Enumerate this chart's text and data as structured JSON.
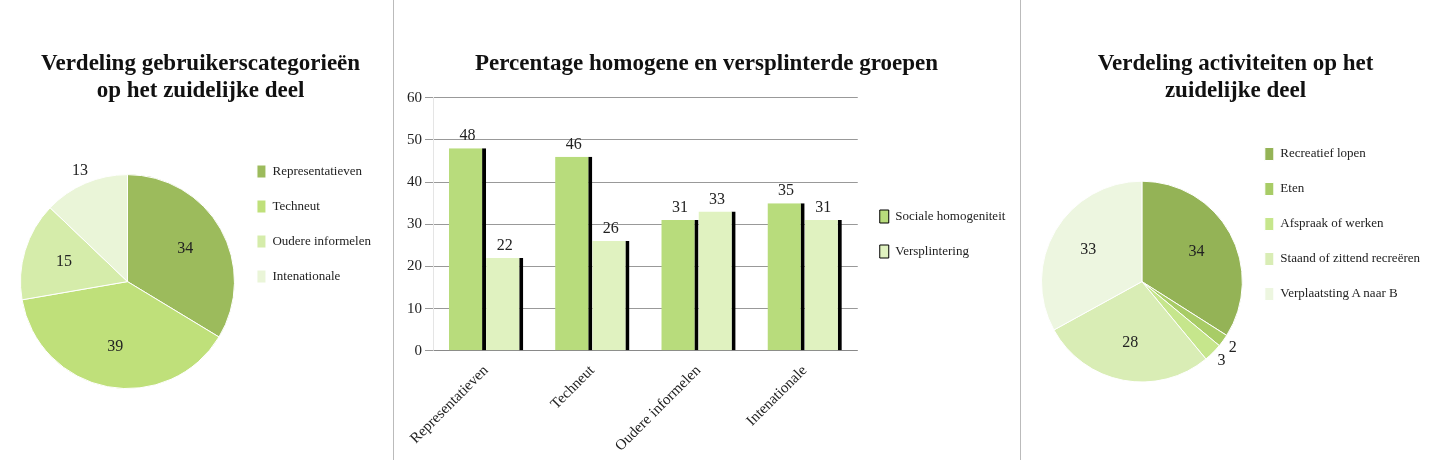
{
  "chart_data": [
    {
      "type": "pie",
      "title": "Verdeling gebruikerscategorieën op het zuidelijke deel",
      "categories": [
        "Representatieven",
        "Techneut",
        "Oudere informelen",
        "Intenationale"
      ],
      "values": [
        34,
        39,
        15,
        13
      ],
      "colors": [
        "#9cbb5c",
        "#bfe07a",
        "#d5ecaa",
        "#eaf5d8"
      ],
      "data_labels": true,
      "legend": "right"
    },
    {
      "type": "bar",
      "title": "Percentage homogene en versplinterde groepen",
      "categories": [
        "Representatieven",
        "Techneut",
        "Oudere informelen",
        "Intenationale"
      ],
      "series": [
        {
          "name": "Sociale homogeniteit",
          "color": "#b8dc7c",
          "values": [
            48,
            46,
            31,
            35
          ]
        },
        {
          "name": "Versplintering",
          "color": "#e0f2c0",
          "values": [
            22,
            26,
            33,
            31
          ]
        }
      ],
      "ylim": [
        0,
        60
      ],
      "yticks": [
        0,
        10,
        20,
        30,
        40,
        50,
        60
      ],
      "grid": "y",
      "data_labels": true,
      "legend": "right"
    },
    {
      "type": "pie",
      "title": "Verdeling activiteiten op het zuidelijke deel",
      "categories": [
        "Recreatief lopen",
        "Eten",
        "Afspraak of werken",
        "Staand of zittend recreëren",
        "Verplaatsting A naar B"
      ],
      "values": [
        34,
        2,
        3,
        28,
        33
      ],
      "colors": [
        "#94b356",
        "#a8cc66",
        "#c6e68c",
        "#d9edb5",
        "#edf6e0"
      ],
      "data_labels": true,
      "legend": "right"
    }
  ]
}
